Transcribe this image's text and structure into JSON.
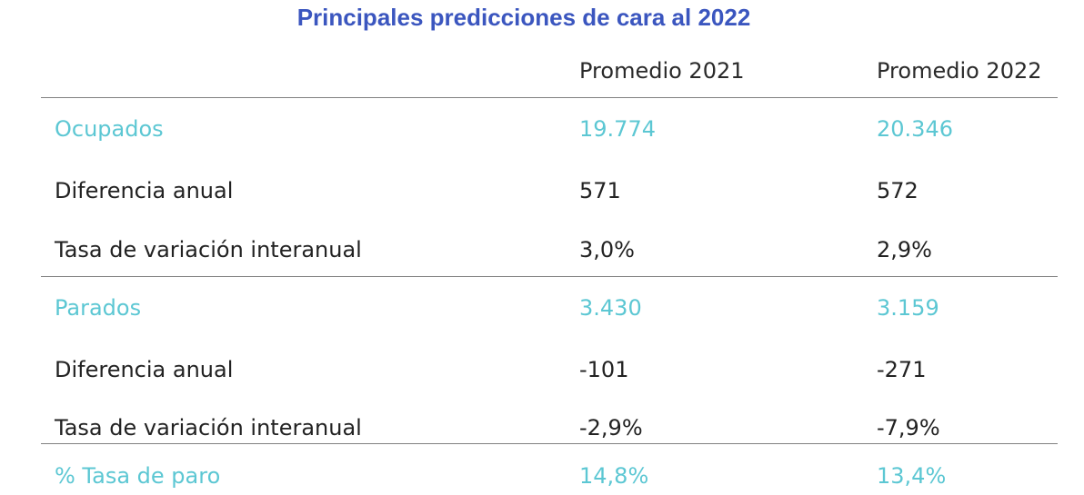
{
  "chart_data": {
    "type": "table",
    "title": "Principales predicciones de cara al 2022",
    "columns": [
      "",
      "Promedio 2021",
      "Promedio 2022"
    ],
    "rows": [
      {
        "label": "Ocupados",
        "values": [
          "19.774",
          "20.346"
        ],
        "highlight": true
      },
      {
        "label": "Diferencia anual",
        "values": [
          "571",
          "572"
        ],
        "highlight": false
      },
      {
        "label": "Tasa de variación interanual",
        "values": [
          "3,0%",
          "2,9%"
        ],
        "highlight": false
      },
      {
        "label": "Parados",
        "values": [
          "3.430",
          "3.159"
        ],
        "highlight": true
      },
      {
        "label": "Diferencia anual",
        "values": [
          "-101",
          "-271"
        ],
        "highlight": false
      },
      {
        "label": "Tasa de variación interanual",
        "values": [
          "-2,9%",
          "-7,9%"
        ],
        "highlight": false
      },
      {
        "label": "% Tasa de paro",
        "values": [
          "14,8%",
          "13,4%"
        ],
        "highlight": true
      }
    ],
    "colors": {
      "title": "#3b56bf",
      "highlight": "#5cc7d3",
      "text": "#222222",
      "rule": "#808080"
    }
  }
}
